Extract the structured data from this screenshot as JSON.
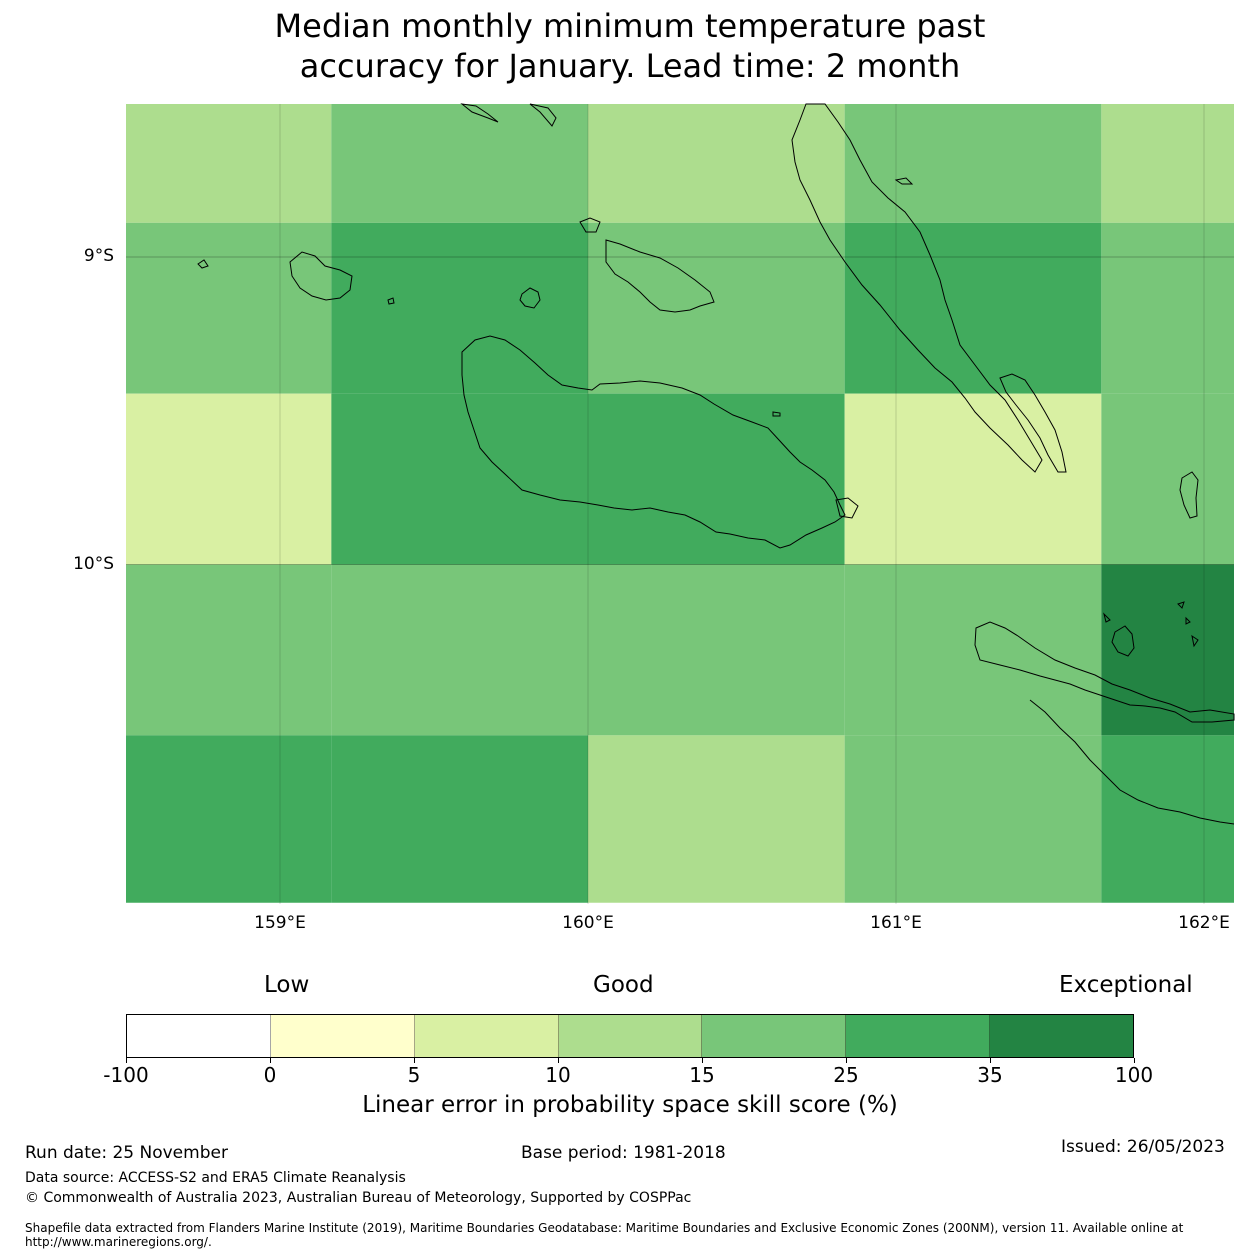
{
  "title_line1": "Median monthly minimum temperature past",
  "title_line2": "accuracy for January. Lead time: 2 month",
  "map": {
    "lon_range": [
      158.5,
      162.1
    ],
    "lat_range": [
      -11.1,
      -8.5
    ],
    "lat_ticks": [
      {
        "value": -9,
        "label": "9°S"
      },
      {
        "value": -10,
        "label": "10°S"
      }
    ],
    "lon_ticks": [
      {
        "value": 159,
        "label": "159°E"
      },
      {
        "value": 160,
        "label": "160°E"
      },
      {
        "value": 161,
        "label": "161°E"
      },
      {
        "value": 162,
        "label": "162°E"
      }
    ],
    "grid_cells": [
      {
        "lon0": 158.5,
        "lon1": 159.1667,
        "lat0": -8.5,
        "lat1": -8.8889,
        "score_class": "10-15"
      },
      {
        "lon0": 159.1667,
        "lon1": 160.0,
        "lat0": -8.5,
        "lat1": -8.8889,
        "score_class": "15-25"
      },
      {
        "lon0": 160.0,
        "lon1": 160.8333,
        "lat0": -8.5,
        "lat1": -8.8889,
        "score_class": "10-15"
      },
      {
        "lon0": 160.8333,
        "lon1": 161.6667,
        "lat0": -8.5,
        "lat1": -8.8889,
        "score_class": "15-25"
      },
      {
        "lon0": 161.6667,
        "lon1": 162.1,
        "lat0": -8.5,
        "lat1": -8.8889,
        "score_class": "10-15"
      },
      {
        "lon0": 158.5,
        "lon1": 159.1667,
        "lat0": -8.8889,
        "lat1": -9.4444,
        "score_class": "15-25"
      },
      {
        "lon0": 159.1667,
        "lon1": 160.0,
        "lat0": -8.8889,
        "lat1": -9.4444,
        "score_class": "25-35"
      },
      {
        "lon0": 160.0,
        "lon1": 160.8333,
        "lat0": -8.8889,
        "lat1": -9.4444,
        "score_class": "15-25"
      },
      {
        "lon0": 160.8333,
        "lon1": 161.6667,
        "lat0": -8.8889,
        "lat1": -9.4444,
        "score_class": "25-35"
      },
      {
        "lon0": 161.6667,
        "lon1": 162.1,
        "lat0": -8.8889,
        "lat1": -9.4444,
        "score_class": "15-25"
      },
      {
        "lon0": 158.5,
        "lon1": 159.1667,
        "lat0": -9.4444,
        "lat1": -10.0,
        "score_class": "5-10"
      },
      {
        "lon0": 159.1667,
        "lon1": 160.0,
        "lat0": -9.4444,
        "lat1": -10.0,
        "score_class": "25-35"
      },
      {
        "lon0": 160.0,
        "lon1": 160.8333,
        "lat0": -9.4444,
        "lat1": -10.0,
        "score_class": "25-35"
      },
      {
        "lon0": 160.8333,
        "lon1": 161.6667,
        "lat0": -9.4444,
        "lat1": -10.0,
        "score_class": "5-10"
      },
      {
        "lon0": 161.6667,
        "lon1": 162.1,
        "lat0": -9.4444,
        "lat1": -10.0,
        "score_class": "15-25"
      },
      {
        "lon0": 158.5,
        "lon1": 159.1667,
        "lat0": -10.0,
        "lat1": -10.5556,
        "score_class": "15-25"
      },
      {
        "lon0": 159.1667,
        "lon1": 160.0,
        "lat0": -10.0,
        "lat1": -10.5556,
        "score_class": "15-25"
      },
      {
        "lon0": 160.0,
        "lon1": 160.8333,
        "lat0": -10.0,
        "lat1": -10.5556,
        "score_class": "15-25"
      },
      {
        "lon0": 160.8333,
        "lon1": 161.6667,
        "lat0": -10.0,
        "lat1": -10.5556,
        "score_class": "15-25"
      },
      {
        "lon0": 161.6667,
        "lon1": 162.1,
        "lat0": -10.0,
        "lat1": -10.5556,
        "score_class": "35-100"
      },
      {
        "lon0": 158.5,
        "lon1": 159.1667,
        "lat0": -10.5556,
        "lat1": -11.1,
        "score_class": "25-35"
      },
      {
        "lon0": 159.1667,
        "lon1": 160.0,
        "lat0": -10.5556,
        "lat1": -11.1,
        "score_class": "25-35"
      },
      {
        "lon0": 160.0,
        "lon1": 160.8333,
        "lat0": -10.5556,
        "lat1": -11.1,
        "score_class": "10-15"
      },
      {
        "lon0": 160.8333,
        "lon1": 161.6667,
        "lat0": -10.5556,
        "lat1": -11.1,
        "score_class": "15-25"
      },
      {
        "lon0": 161.6667,
        "lon1": 162.1,
        "lat0": -10.5556,
        "lat1": -11.1,
        "score_class": "25-35"
      }
    ],
    "palette": {
      "-100-0": "#ffffff",
      "0-5": "#ffffcc",
      "5-10": "#d9f0a3",
      "10-15": "#addd8e",
      "15-25": "#78c679",
      "25-35": "#41ab5d",
      "35-100": "#238443"
    }
  },
  "legend": {
    "categories": [
      {
        "label": "Low"
      },
      {
        "label": "Good"
      },
      {
        "label": "Exceptional"
      }
    ],
    "colors": [
      "#ffffff",
      "#ffffcc",
      "#d9f0a3",
      "#addd8e",
      "#78c679",
      "#41ab5d",
      "#238443"
    ],
    "ticks": [
      "-100",
      "0",
      "5",
      "10",
      "15",
      "25",
      "35",
      "100"
    ],
    "label": "Linear error in probability space skill score (%)"
  },
  "footer": {
    "run_date": "Run date: 25 November",
    "base_period": "Base period: 1981-2018",
    "issued": "Issued: 26/05/2023",
    "data_source": "Data source: ACCESS-S2 and ERA5 Climate Reanalysis",
    "copyright": "© Commonwealth of Australia 2023, Australian Bureau of Meteorology, Supported by COSPPac",
    "shapefile": "Shapefile data extracted from Flanders Marine Institute (2019), Maritime Boundaries Geodatabase: Maritime Boundaries and Exclusive Economic Zones (200NM), version 11. Available online at http://www.marineregions.org/."
  }
}
